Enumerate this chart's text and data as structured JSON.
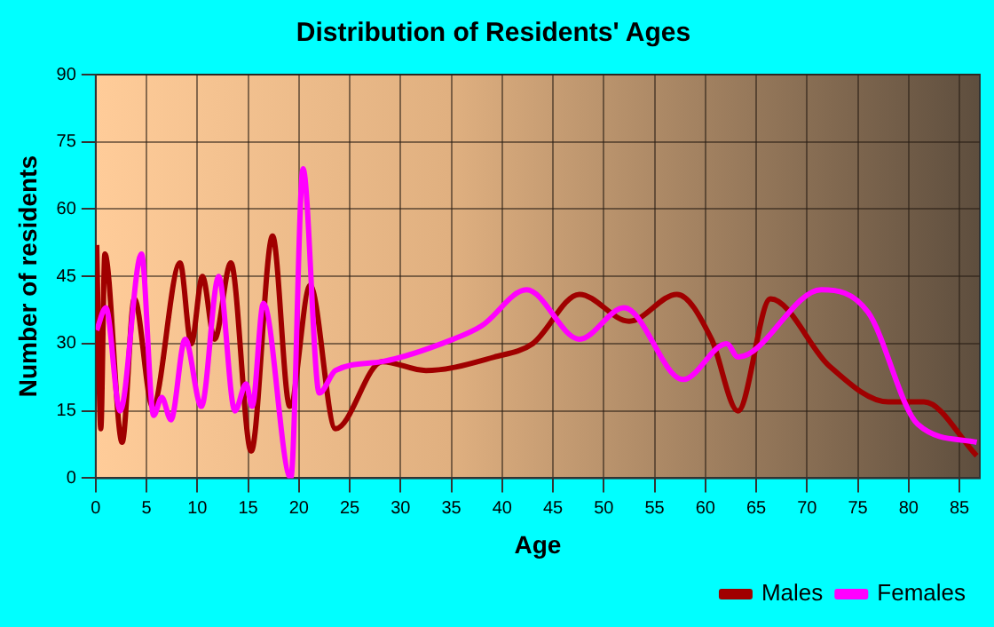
{
  "chart_data": {
    "type": "line",
    "title": "Distribution of Residents' Ages",
    "xlabel": "Age",
    "ylabel": "Number of residents",
    "xlim": [
      0,
      87
    ],
    "xticks": [
      0,
      5,
      10,
      15,
      20,
      25,
      30,
      35,
      40,
      45,
      50,
      55,
      60,
      65,
      70,
      75,
      80,
      85
    ],
    "ylim": [
      0,
      90
    ],
    "yticks": [
      0,
      15,
      30,
      45,
      60,
      75,
      90
    ],
    "grid": true,
    "legend": "bottom right",
    "marker": "none",
    "line_style": "solid",
    "series": [
      {
        "name": "Males",
        "color": "#a00000",
        "x": [
          0.1,
          0.5,
          0.9,
          2.6,
          3.8,
          5.6,
          8.3,
          9.4,
          10.5,
          11.7,
          13.3,
          15.3,
          17.4,
          19.1,
          21.1,
          23.6,
          28.2,
          32.5,
          39.2,
          43,
          47.6,
          52.5,
          57.2,
          60.6,
          63.2,
          66.4,
          72.2,
          78,
          81.5,
          86.7
        ],
        "values": [
          52,
          11,
          50,
          8,
          40,
          16,
          48,
          30,
          45,
          31,
          48,
          6,
          54,
          16,
          43,
          11,
          26,
          24,
          27,
          30,
          41,
          35,
          41,
          31,
          15,
          40,
          25,
          17,
          17,
          5
        ]
      },
      {
        "name": "Females",
        "color": "#ff00ff",
        "x": [
          0.1,
          1,
          2.4,
          4.5,
          5.7,
          6.5,
          7.4,
          8.8,
          10.4,
          12.1,
          13.7,
          14.8,
          15.4,
          16.5,
          19.2,
          20.4,
          22,
          23.6,
          28.2,
          35.2,
          38,
          42.4,
          47.6,
          52,
          57.8,
          62.1,
          63.2,
          71.4,
          76,
          80.9,
          86.7
        ],
        "values": [
          33,
          38,
          15,
          50,
          14,
          18,
          13,
          31,
          16,
          45,
          15,
          21,
          16,
          39,
          0,
          69,
          19,
          24,
          26,
          31,
          34,
          42,
          31,
          38,
          22,
          30,
          27,
          42,
          37,
          12,
          8
        ]
      }
    ]
  }
}
